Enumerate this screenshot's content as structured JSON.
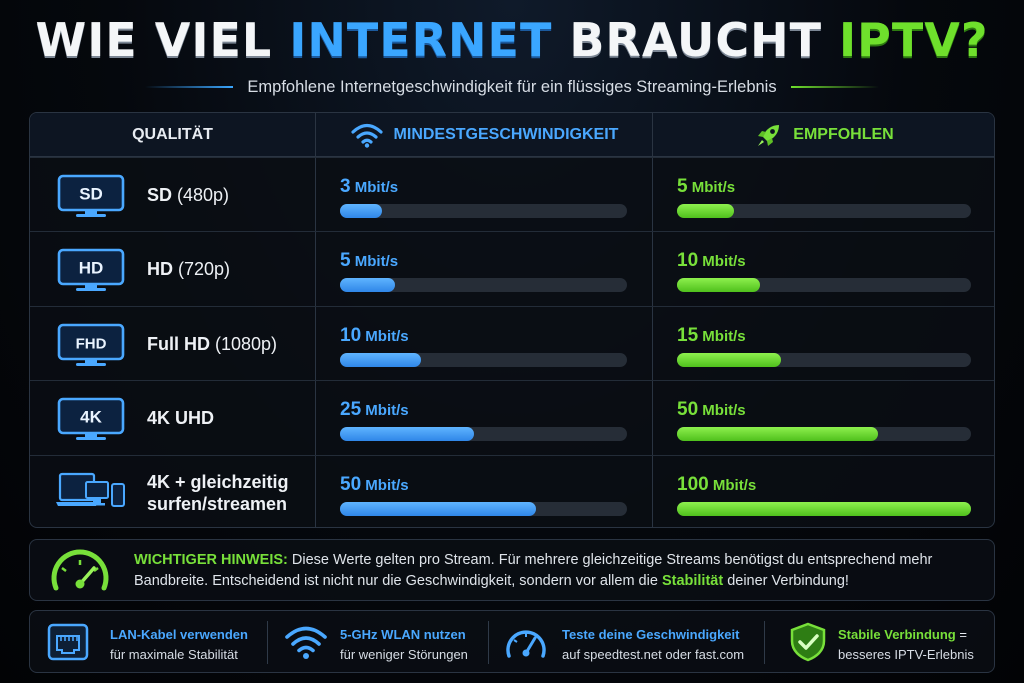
{
  "header": {
    "title_part1": "WIE VIEL ",
    "title_part2": "INTERNET",
    "title_part3": " BRAUCHT ",
    "title_part4": "IPTV?",
    "subtitle": "Empfohlene Internetgeschwindigkeit für ein flüssiges Streaming-Erlebnis"
  },
  "table": {
    "col_quality": "QUALITÄT",
    "col_min": "MINDESTGESCHWINDIGKEIT",
    "col_rec": "EMPFOHLEN",
    "max_scale": 100,
    "rows": [
      {
        "badge": "SD",
        "label": "SD",
        "label_sub": " (480p)",
        "label2": "",
        "min": 3,
        "min_text": "3",
        "rec": 5,
        "rec_text": "5"
      },
      {
        "badge": "HD",
        "label": "HD",
        "label_sub": " (720p)",
        "label2": "",
        "min": 5,
        "min_text": "5",
        "rec": 10,
        "rec_text": "10"
      },
      {
        "badge": "FHD",
        "label": "Full HD",
        "label_sub": " (1080p)",
        "label2": "",
        "min": 10,
        "min_text": "10",
        "rec": 15,
        "rec_text": "15"
      },
      {
        "badge": "4K",
        "label": "4K UHD",
        "label_sub": "",
        "label2": "",
        "min": 25,
        "min_text": "25",
        "rec": 50,
        "rec_text": "50"
      },
      {
        "badge": "",
        "label": "4K + gleichzeitig",
        "label_sub": "",
        "label2": "surfen/streamen",
        "min": 50,
        "min_text": "50",
        "rec": 100,
        "rec_text": "100"
      }
    ],
    "unit": " Mbit/s"
  },
  "notice": {
    "heading": "WICHTIGER HINWEIS:",
    "text1": " Diese Werte gelten pro Stream. Für mehrere gleichzeitige Streams benötigst du entsprechend mehr Bandbreite. Entscheidend ist nicht nur die Geschwindigkeit, sondern vor allem die ",
    "highlight": "Stabilität",
    "text2": " deiner Verbindung!"
  },
  "tips": [
    {
      "icon": "ethernet-port-icon",
      "title": "LAN-Kabel verwenden",
      "sub": "für maximale Stabilität"
    },
    {
      "icon": "wifi-icon",
      "title": "5-GHz WLAN nutzen",
      "sub": "für weniger Störungen"
    },
    {
      "icon": "speedometer-icon",
      "title": "Teste deine Geschwindigkeit",
      "sub": "auf speedtest.net oder fast.com"
    },
    {
      "icon": "shield-check-icon",
      "title": "Stabile Verbindung",
      "title_suffix": " =",
      "sub": "besseres IPTV-Erlebnis"
    }
  ],
  "colors": {
    "blue": "#4aa8ff",
    "green": "#78e03a",
    "background": "#05080d"
  }
}
